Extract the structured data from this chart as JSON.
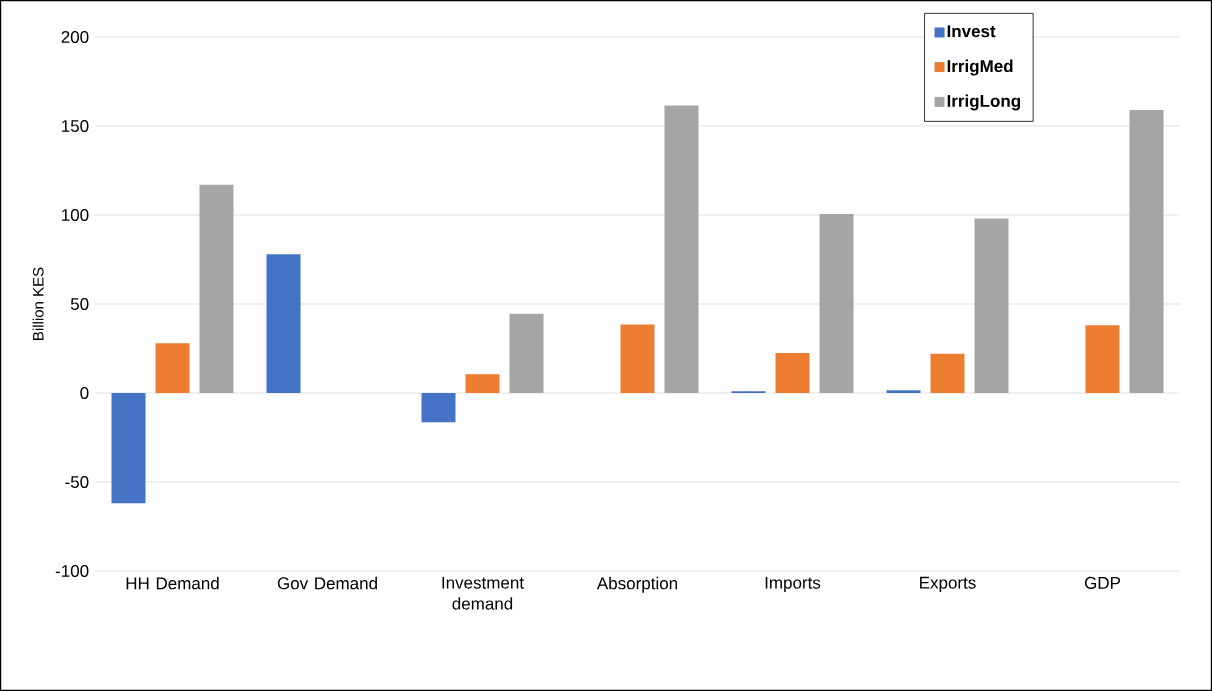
{
  "chart_data": {
    "type": "bar",
    "ylabel": "Billion KES",
    "categories": [
      "HH Demand",
      "Gov Demand",
      "Investment demand",
      "Absorption",
      "Imports",
      "Exports",
      "GDP"
    ],
    "series": [
      {
        "name": "Invest",
        "color": "#4472c4",
        "values": [
          -62,
          78,
          -16.5,
          0,
          1,
          1.5,
          0
        ]
      },
      {
        "name": "IrrigMed",
        "color": "#ed7d31",
        "values": [
          28,
          0,
          10.5,
          38.5,
          22.5,
          22,
          38
        ]
      },
      {
        "name": "IrrigLong",
        "color": "#a5a5a5",
        "values": [
          117,
          0,
          44.5,
          161.5,
          100.5,
          98,
          159
        ]
      }
    ],
    "ylim": [
      -100,
      200
    ],
    "yticks": [
      -100,
      -50,
      0,
      50,
      100,
      150,
      200
    ],
    "grid": "y",
    "legend": "top right"
  }
}
